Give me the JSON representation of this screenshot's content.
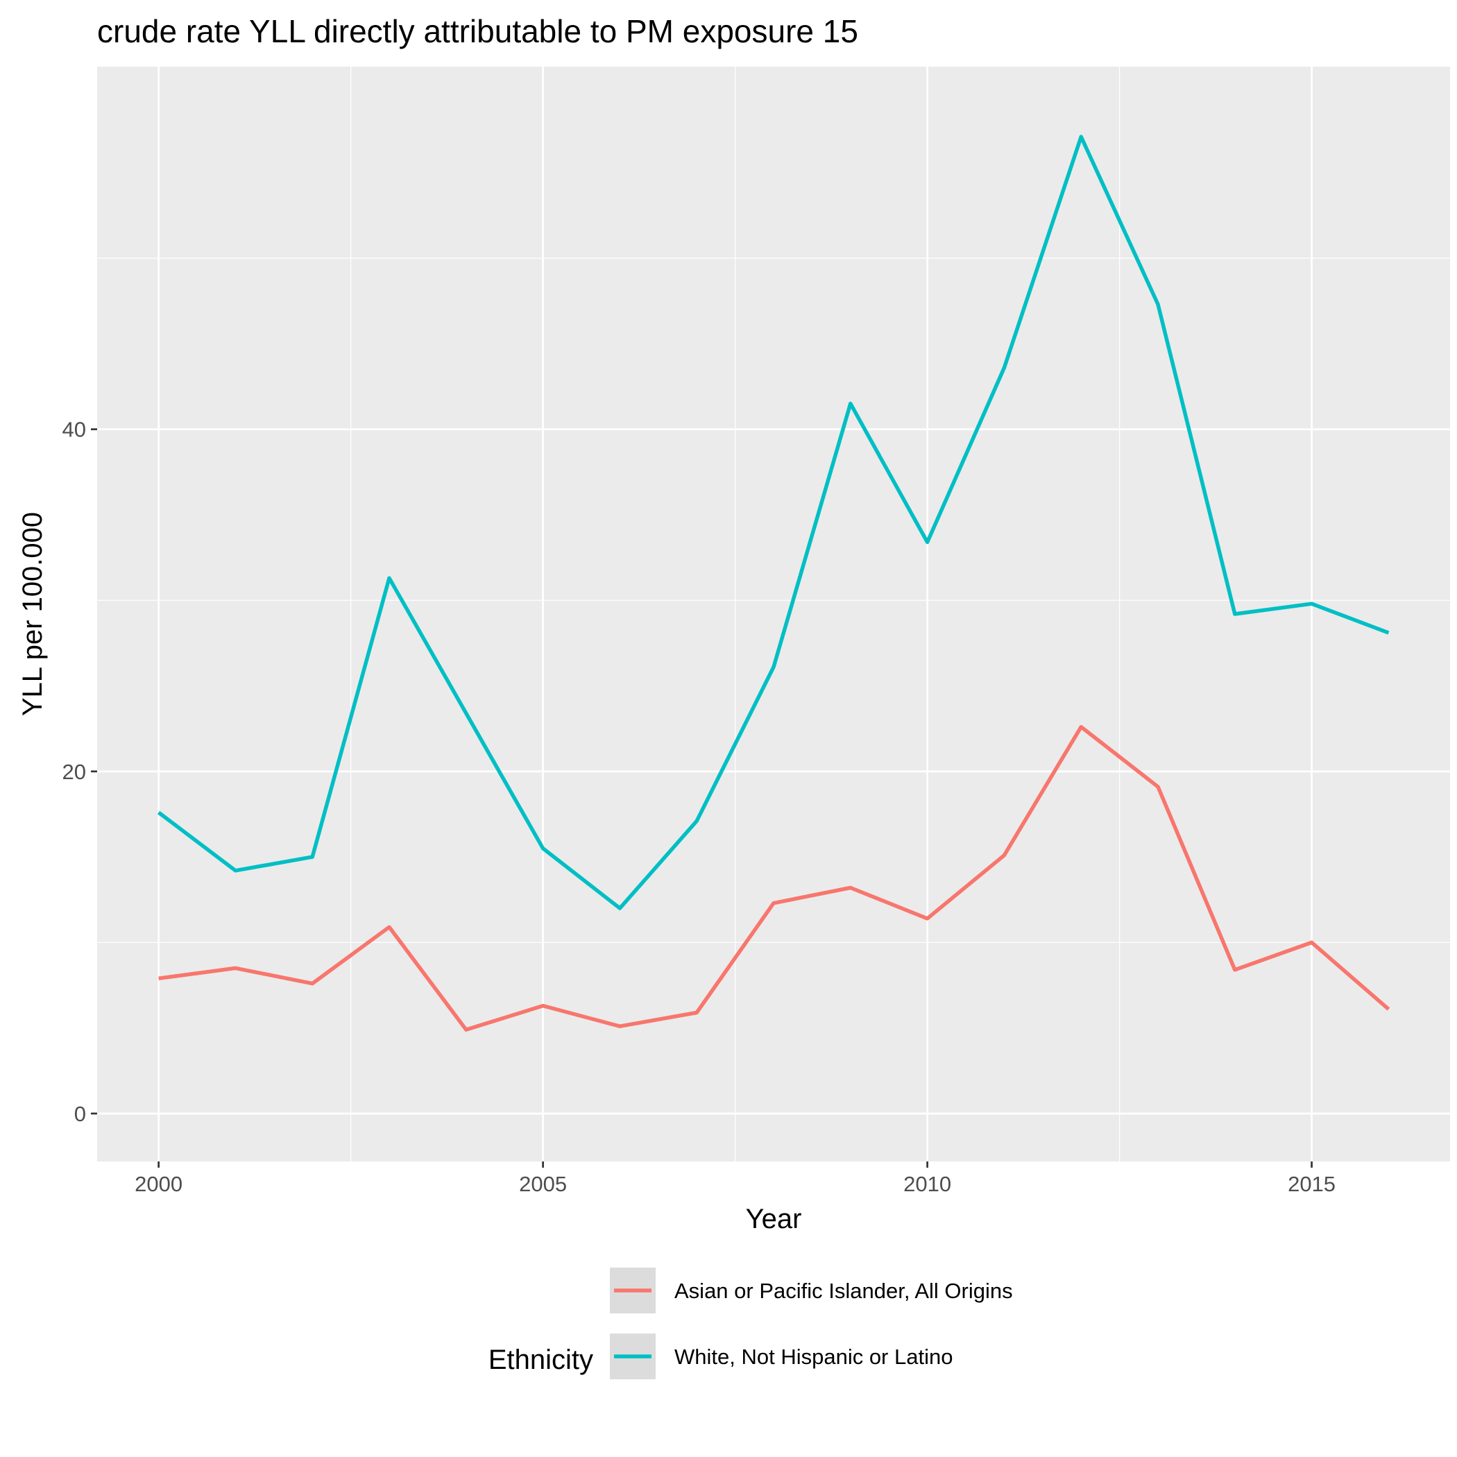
{
  "chart_data": {
    "type": "line",
    "title": "crude rate YLL directly attributable to PM exposure 15",
    "xlabel": "Year",
    "ylabel": "YLL per 100.000",
    "x": [
      2000,
      2001,
      2002,
      2003,
      2004,
      2005,
      2006,
      2007,
      2008,
      2009,
      2010,
      2011,
      2012,
      2013,
      2014,
      2015,
      2016
    ],
    "xlim": [
      1999.2,
      2016.8
    ],
    "ylim": [
      -2.8,
      61.2
    ],
    "x_ticks": [
      "2000",
      "2005",
      "2010",
      "2015"
    ],
    "x_tick_values": [
      2000,
      2005,
      2010,
      2015
    ],
    "y_ticks": [
      "0",
      "20",
      "40"
    ],
    "y_tick_values": [
      0,
      20,
      40
    ],
    "minor_x": [
      2002.5,
      2007.5,
      2012.5
    ],
    "minor_y": [
      10,
      30,
      50
    ],
    "grid": true,
    "legend": {
      "title": "Ethnicity",
      "position": "bottom"
    },
    "series": [
      {
        "name": "Asian or Pacific Islander, All Origins",
        "color": "#F8766D",
        "values": [
          7.9,
          8.5,
          7.6,
          10.9,
          4.9,
          6.3,
          5.1,
          5.9,
          12.3,
          13.2,
          11.4,
          15.1,
          22.6,
          19.1,
          8.4,
          10.0,
          6.1
        ]
      },
      {
        "name": "White, Not Hispanic or Latino",
        "color": "#00BFC4",
        "values": [
          17.6,
          14.2,
          15.0,
          31.3,
          23.4,
          15.5,
          12.0,
          17.1,
          26.1,
          41.5,
          33.4,
          43.6,
          57.1,
          47.3,
          29.2,
          29.8,
          28.1
        ]
      }
    ]
  }
}
